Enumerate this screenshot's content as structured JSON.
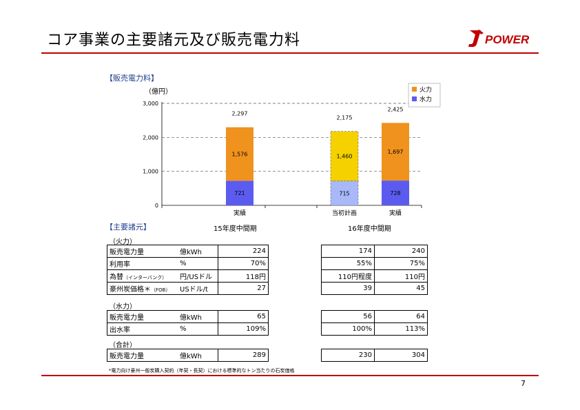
{
  "page": {
    "title": "コア事業の主要諸元及び販売電力料",
    "logo_text": "POWER",
    "page_number": "7",
    "footnote": "*電力向け豪州一般炭購入契約（年契・長契）における標準的なトン当たりの石炭価格"
  },
  "chart_section": {
    "header": "【販売電力料】",
    "unit": "（億円）"
  },
  "chart_data": {
    "type": "bar",
    "stacked": true,
    "ylim": [
      0,
      3000
    ],
    "yticks": [
      "0",
      "1,000",
      "2,000",
      "3,000"
    ],
    "grid": true,
    "legend_position": "top-right",
    "categories": [
      "実績",
      "当初計画",
      "実績"
    ],
    "groups": [
      "15年度中間期",
      "16年度中間期"
    ],
    "totals": [
      "2,297",
      "2,175",
      "2,425"
    ],
    "series": [
      {
        "name": "水力",
        "values": [
          721,
          715,
          728
        ],
        "labels": [
          "721",
          "715",
          "728"
        ],
        "color": "#5b5bf0",
        "plan_color": "#a8b8f8"
      },
      {
        "name": "火力",
        "values": [
          1576,
          1460,
          1697
        ],
        "labels": [
          "1,576",
          "1,460",
          "1,697"
        ],
        "color": "#f0921e",
        "plan_color": "#f5d100"
      }
    ]
  },
  "spec_section": {
    "header": "【主要諸元】",
    "col_fy15": "15年度中間期",
    "col_fy16": "16年度中間期"
  },
  "groups": {
    "thermal": {
      "label": "（火力）",
      "rows": [
        {
          "label": "販売電力量",
          "unit": "億kWh",
          "fy15": "224",
          "plan": "174",
          "actual": "240"
        },
        {
          "label": "利用率",
          "unit": "%",
          "fy15": "70%",
          "plan": "55%",
          "actual": "75%"
        },
        {
          "label": "為替",
          "label_small": "（インターバンク）",
          "unit": "円/USドル",
          "fy15": "118円",
          "plan": "110円程度",
          "actual": "110円"
        },
        {
          "label": "豪州炭価格＊",
          "label_small": "（FOB）",
          "unit": "USドル/t",
          "fy15": "27",
          "plan": "39",
          "actual": "45"
        }
      ]
    },
    "hydro": {
      "label": "（水力）",
      "rows": [
        {
          "label": "販売電力量",
          "unit": "億kWh",
          "fy15": "65",
          "plan": "56",
          "actual": "64"
        },
        {
          "label": "出水率",
          "unit": "%",
          "fy15": "109%",
          "plan": "100%",
          "actual": "113%"
        }
      ]
    },
    "total": {
      "label": "（合計）",
      "rows": [
        {
          "label": "販売電力量",
          "unit": "億kWh",
          "fy15": "289",
          "plan": "230",
          "actual": "304"
        }
      ]
    }
  }
}
